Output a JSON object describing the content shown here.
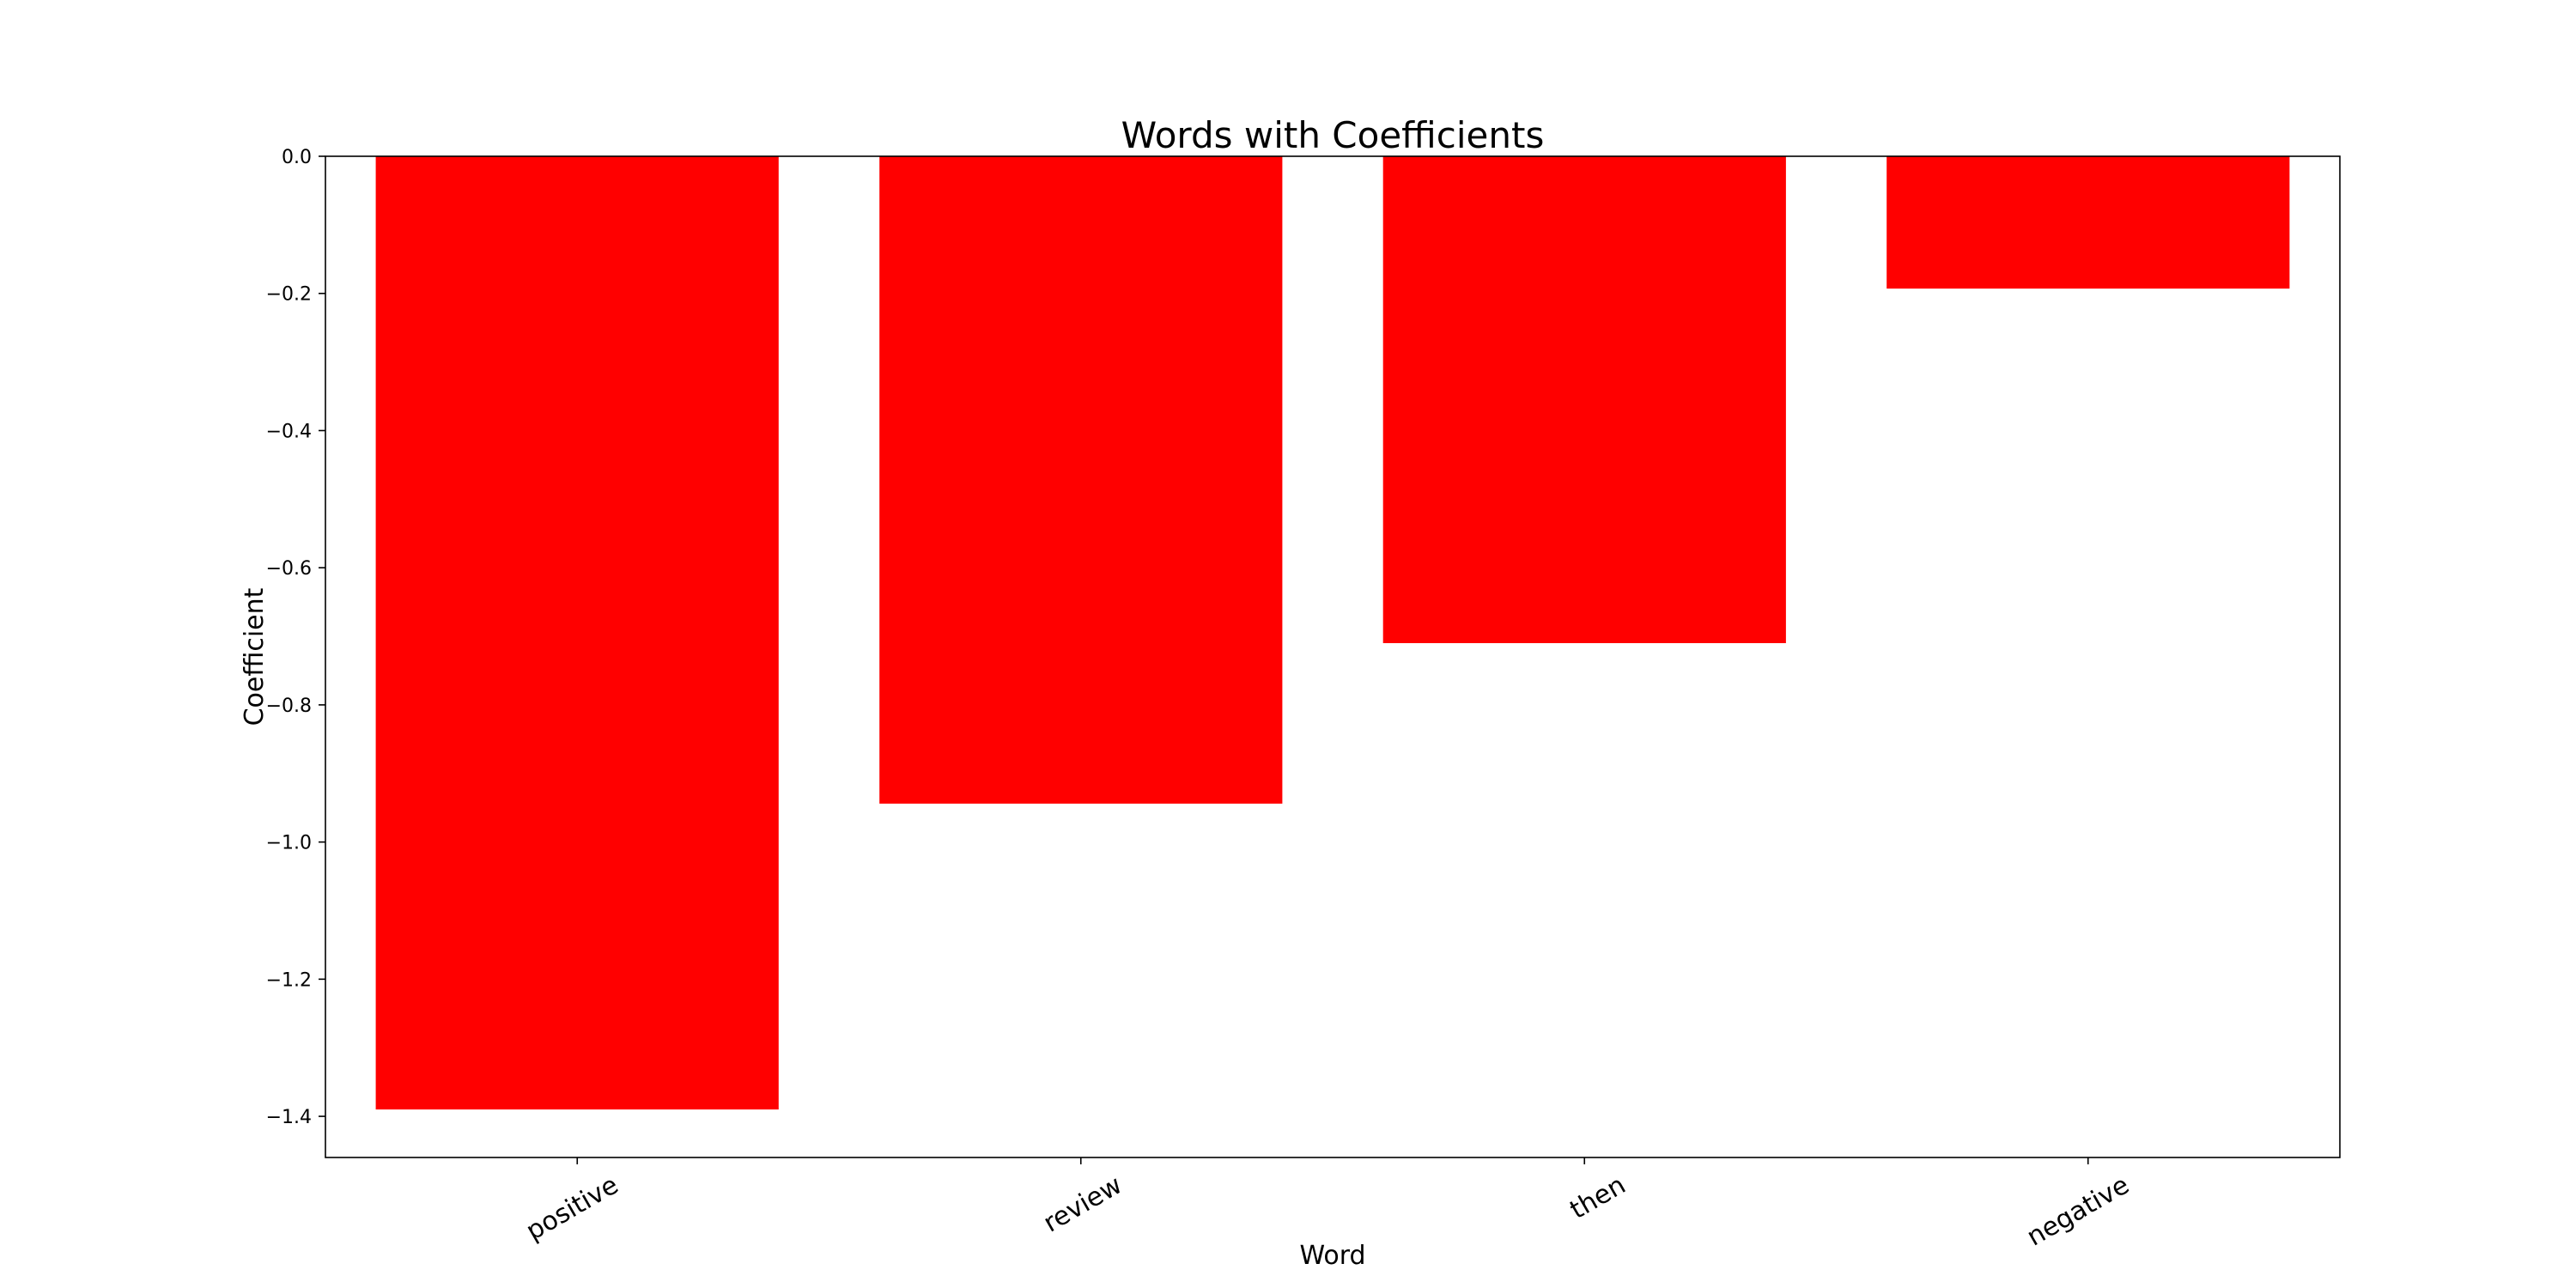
{
  "chart_data": {
    "type": "bar",
    "title": "Words with Coefficients",
    "xlabel": "Word",
    "ylabel": "Coefficient",
    "categories": [
      "positive",
      "review",
      "then",
      "negative"
    ],
    "values": [
      -1.39,
      -0.944,
      -0.71,
      -0.193
    ],
    "ylim": [
      -1.46,
      0.0
    ],
    "yticks": [
      0.0,
      -0.2,
      -0.4,
      -0.6,
      -0.8,
      -1.0,
      -1.2,
      -1.4
    ],
    "ytick_labels": [
      "0.0",
      "−0.2",
      "−0.4",
      "−0.6",
      "−0.8",
      "−1.0",
      "−1.2",
      "−1.4"
    ],
    "bar_color": "#ff0000",
    "grid": false,
    "legend": "none",
    "xtick_rotation_deg": -30
  }
}
